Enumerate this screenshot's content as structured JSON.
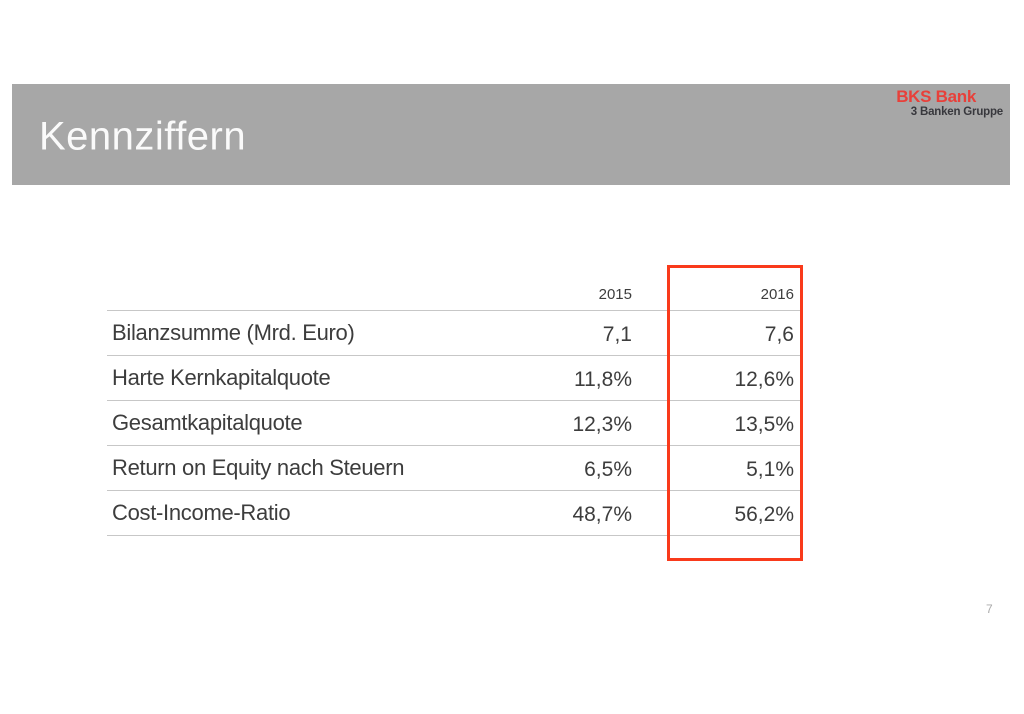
{
  "header": {
    "title": "Kennziffern"
  },
  "logo": {
    "wordmark": "BKS Bank",
    "subtitle": "3 Banken Gruppe"
  },
  "table": {
    "columns": [
      "2015",
      "2016"
    ],
    "rows": [
      {
        "label": "Bilanzsumme (Mrd. Euro)",
        "values": [
          "7,1",
          "7,6"
        ]
      },
      {
        "label": "Harte Kernkapitalquote",
        "values": [
          "11,8%",
          "12,6%"
        ]
      },
      {
        "label": "Gesamtkapitalquote",
        "values": [
          "12,3%",
          "13,5%"
        ]
      },
      {
        "label": "Return on Equity nach Steuern",
        "values": [
          "6,5%",
          "5,1%"
        ]
      },
      {
        "label": "Cost-Income-Ratio",
        "values": [
          "48,7%",
          "56,2%"
        ]
      }
    ],
    "highlighted_column": "2016"
  },
  "footer": {
    "page_number": "7"
  },
  "colors": {
    "header_bar": "#a7a7a7",
    "title_text": "#fafafa",
    "logo_red": "#e8403a",
    "logo_sub": "#38383d",
    "table_text": "#3d3d3d",
    "grid_line": "#c7c7c7",
    "highlight_red": "#f93a1b"
  }
}
